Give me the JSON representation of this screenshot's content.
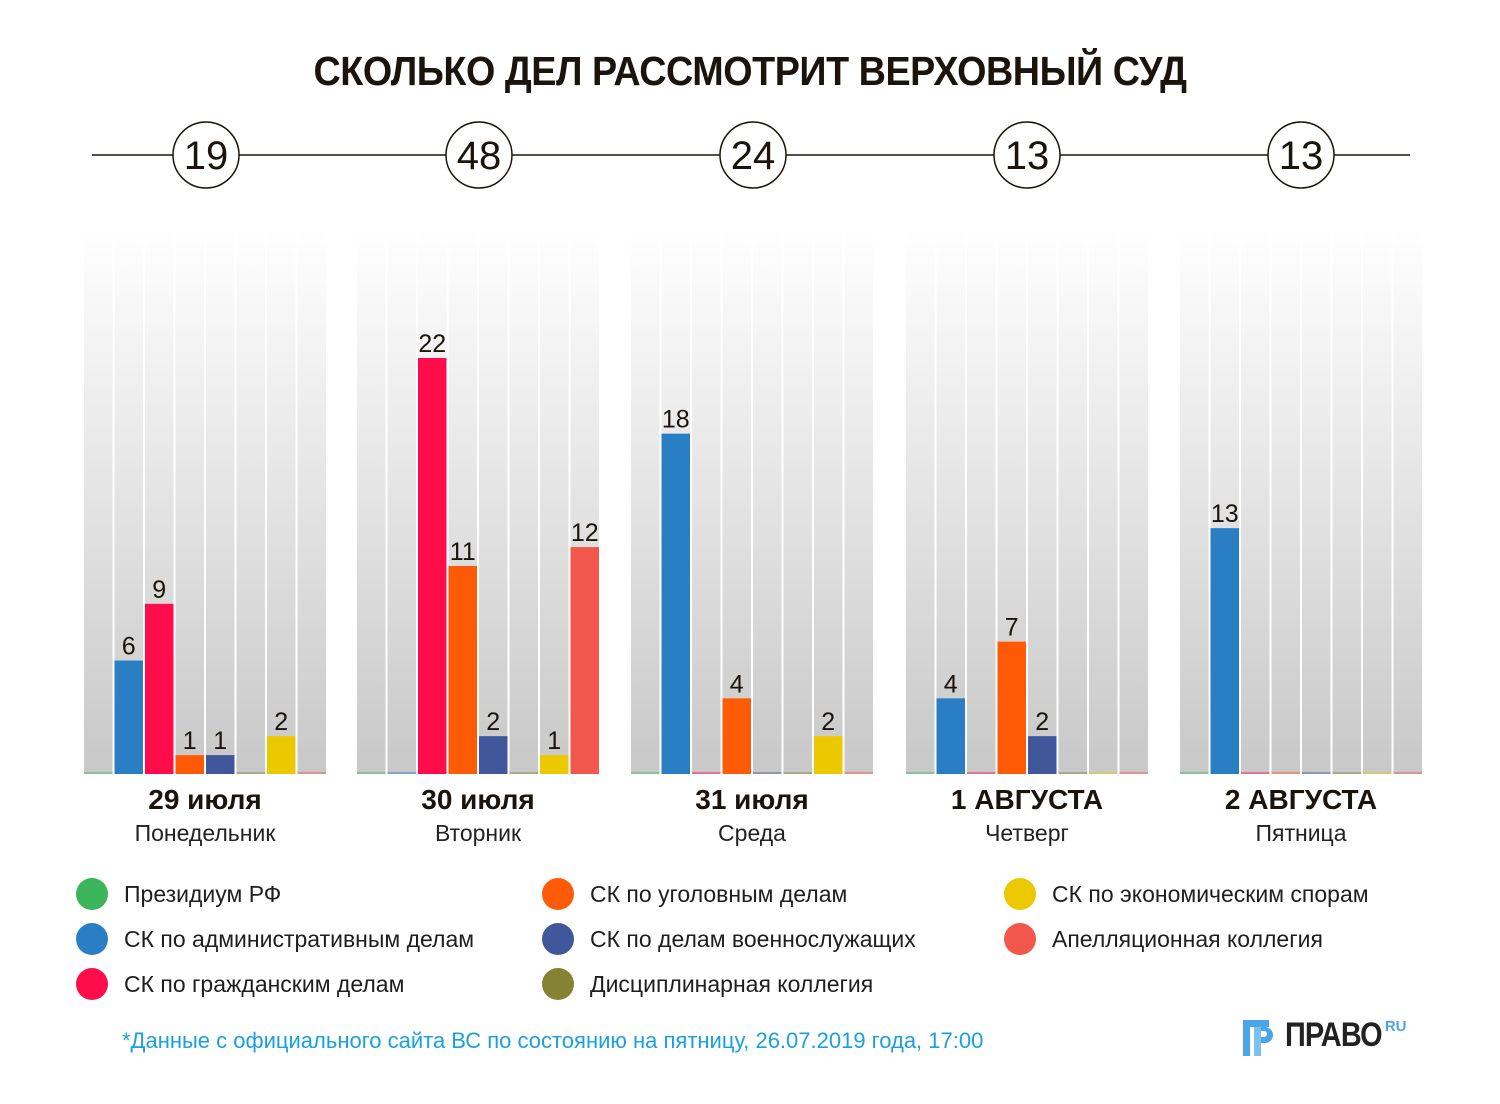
{
  "title": "СКОЛЬКО ДЕЛ РАССМОТРИТ ВЕРХОВНЫЙ СУД",
  "chart_data": {
    "type": "bar",
    "title": "СКОЛЬКО ДЕЛ РАССМОТРИТ ВЕРХОВНЫЙ СУД",
    "xlabel": "",
    "ylabel": "",
    "ylim": [
      0,
      29
    ],
    "grid": false,
    "legend_position": "bottom",
    "categories": [
      "29 июля",
      "30 июля",
      "31 июля",
      "1 АВГУСТА",
      "2 АВГУСТА"
    ],
    "weekdays": [
      "Понедельник",
      "Вторник",
      "Среда",
      "Четверг",
      "Пятница"
    ],
    "totals": [
      19,
      48,
      24,
      13,
      13
    ],
    "series": [
      {
        "name": "Президиум РФ",
        "color": "#3cb55a",
        "values": [
          0,
          0,
          0,
          0,
          0
        ]
      },
      {
        "name": "СК по административным делам",
        "color": "#2a7fc4",
        "values": [
          6,
          0,
          18,
          4,
          13
        ]
      },
      {
        "name": "СК по гражданским делам",
        "color": "#ff0d4b",
        "values": [
          9,
          22,
          0,
          0,
          0
        ]
      },
      {
        "name": "СК по уголовным делам",
        "color": "#ff5a05",
        "values": [
          1,
          11,
          4,
          7,
          0
        ]
      },
      {
        "name": "СК по делам военнослужащих",
        "color": "#40579c",
        "values": [
          1,
          2,
          0,
          2,
          0
        ]
      },
      {
        "name": "Дисциплинарная коллегия",
        "color": "#868233",
        "values": [
          0,
          0,
          0,
          0,
          0
        ]
      },
      {
        "name": "СК по экономическим спорам",
        "color": "#ecc800",
        "values": [
          2,
          1,
          2,
          0,
          0
        ]
      },
      {
        "name": "Апелляционная коллегия",
        "color": "#f2574b",
        "values": [
          0,
          12,
          0,
          0,
          0
        ]
      }
    ]
  },
  "legend": [
    {
      "label": "Президиум РФ",
      "color": "#3cb55a"
    },
    {
      "label": "СК по административным делам",
      "color": "#2a7fc4"
    },
    {
      "label": "СК по гражданским делам",
      "color": "#ff0d4b"
    },
    {
      "label": "СК по уголовным делам",
      "color": "#ff5a05"
    },
    {
      "label": "СК по делам военнослужащих",
      "color": "#40579c"
    },
    {
      "label": "Дисциплинарная коллегия",
      "color": "#868233"
    },
    {
      "label": "СК по экономическим спорам",
      "color": "#ecc800"
    },
    {
      "label": "Апелляционная коллегия",
      "color": "#f2574b"
    }
  ],
  "footnote": "*Данные с официального сайта ВС по состоянию на пятницу, 26.07.2019 года, 17:00",
  "logo": {
    "text": "ПРАВО",
    "suffix": "RU"
  }
}
